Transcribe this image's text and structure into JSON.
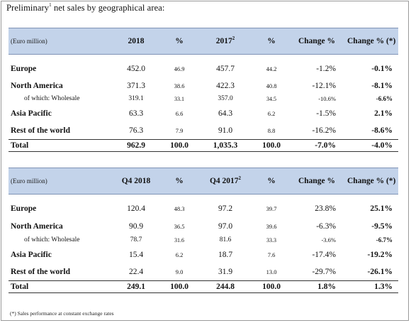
{
  "heading": {
    "pre": "Preliminary",
    "sup": "1",
    "post": " net sales by geographical area:"
  },
  "table1": {
    "header": {
      "unit": "(Euro million)",
      "y1": "2018",
      "p1": "%",
      "y2": "2017",
      "y2_sup": "2",
      "p2": "%",
      "chg": "Change %",
      "chgc": "Change % (*)"
    },
    "rows": [
      {
        "label": "Europe",
        "v1": "452.0",
        "p1": "46.9",
        "v2": "457.7",
        "p2": "44.2",
        "chg": "-1.2%",
        "chgc": "-0.1%"
      },
      {
        "label": "North America",
        "v1": "371.3",
        "p1": "38.6",
        "v2": "422.3",
        "p2": "40.8",
        "chg": "-12.1%",
        "chgc": "-8.1%"
      },
      {
        "label": "of which: Wholesale",
        "v1": "319.1",
        "p1": "33.1",
        "v2": "357.0",
        "p2": "34.5",
        "chg": "-10.6%",
        "chgc": "-6.6%"
      },
      {
        "label": "Asia Pacific",
        "v1": "63.3",
        "p1": "6.6",
        "v2": "64.3",
        "p2": "6.2",
        "chg": "-1.5%",
        "chgc": "2.1%"
      },
      {
        "label": "Rest of the world",
        "v1": "76.3",
        "p1": "7.9",
        "v2": "91.0",
        "p2": "8.8",
        "chg": "-16.2%",
        "chgc": "-8.6%"
      }
    ],
    "total": {
      "label": "Total",
      "v1": "962.9",
      "p1": "100.0",
      "v2": "1,035.3",
      "p2": "100.0",
      "chg": "-7.0%",
      "chgc": "-4.0%"
    }
  },
  "table2": {
    "header": {
      "unit": "(Euro million)",
      "y1": "Q4 2018",
      "p1": "%",
      "y2": "Q4 2017",
      "y2_sup": "2",
      "p2": "%",
      "chg": "Change %",
      "chgc": "Change % (*)"
    },
    "rows": [
      {
        "label": "Europe",
        "v1": "120.4",
        "p1": "48.3",
        "v2": "97.2",
        "p2": "39.7",
        "chg": "23.8%",
        "chgc": "25.1%"
      },
      {
        "label": "North America",
        "v1": "90.9",
        "p1": "36.5",
        "v2": "97.0",
        "p2": "39.6",
        "chg": "-6.3%",
        "chgc": "-9.5%"
      },
      {
        "label": "of which: Wholesale",
        "v1": "78.7",
        "p1": "31.6",
        "v2": "81.6",
        "p2": "33.3",
        "chg": "-3.6%",
        "chgc": "-6.7%"
      },
      {
        "label": "Asia Pacific",
        "v1": "15.4",
        "p1": "6.2",
        "v2": "18.7",
        "p2": "7.6",
        "chg": "-17.4%",
        "chgc": "-19.2%"
      },
      {
        "label": "Rest of the world",
        "v1": "22.4",
        "p1": "9.0",
        "v2": "31.9",
        "p2": "13.0",
        "chg": "-29.7%",
        "chgc": "-26.1%"
      }
    ],
    "total": {
      "label": "Total",
      "v1": "249.1",
      "p1": "100.0",
      "v2": "244.8",
      "p2": "100.0",
      "chg": "1.8%",
      "chgc": "1.3%"
    }
  },
  "footnote": "(*) Sales performance at constant exchange rates"
}
